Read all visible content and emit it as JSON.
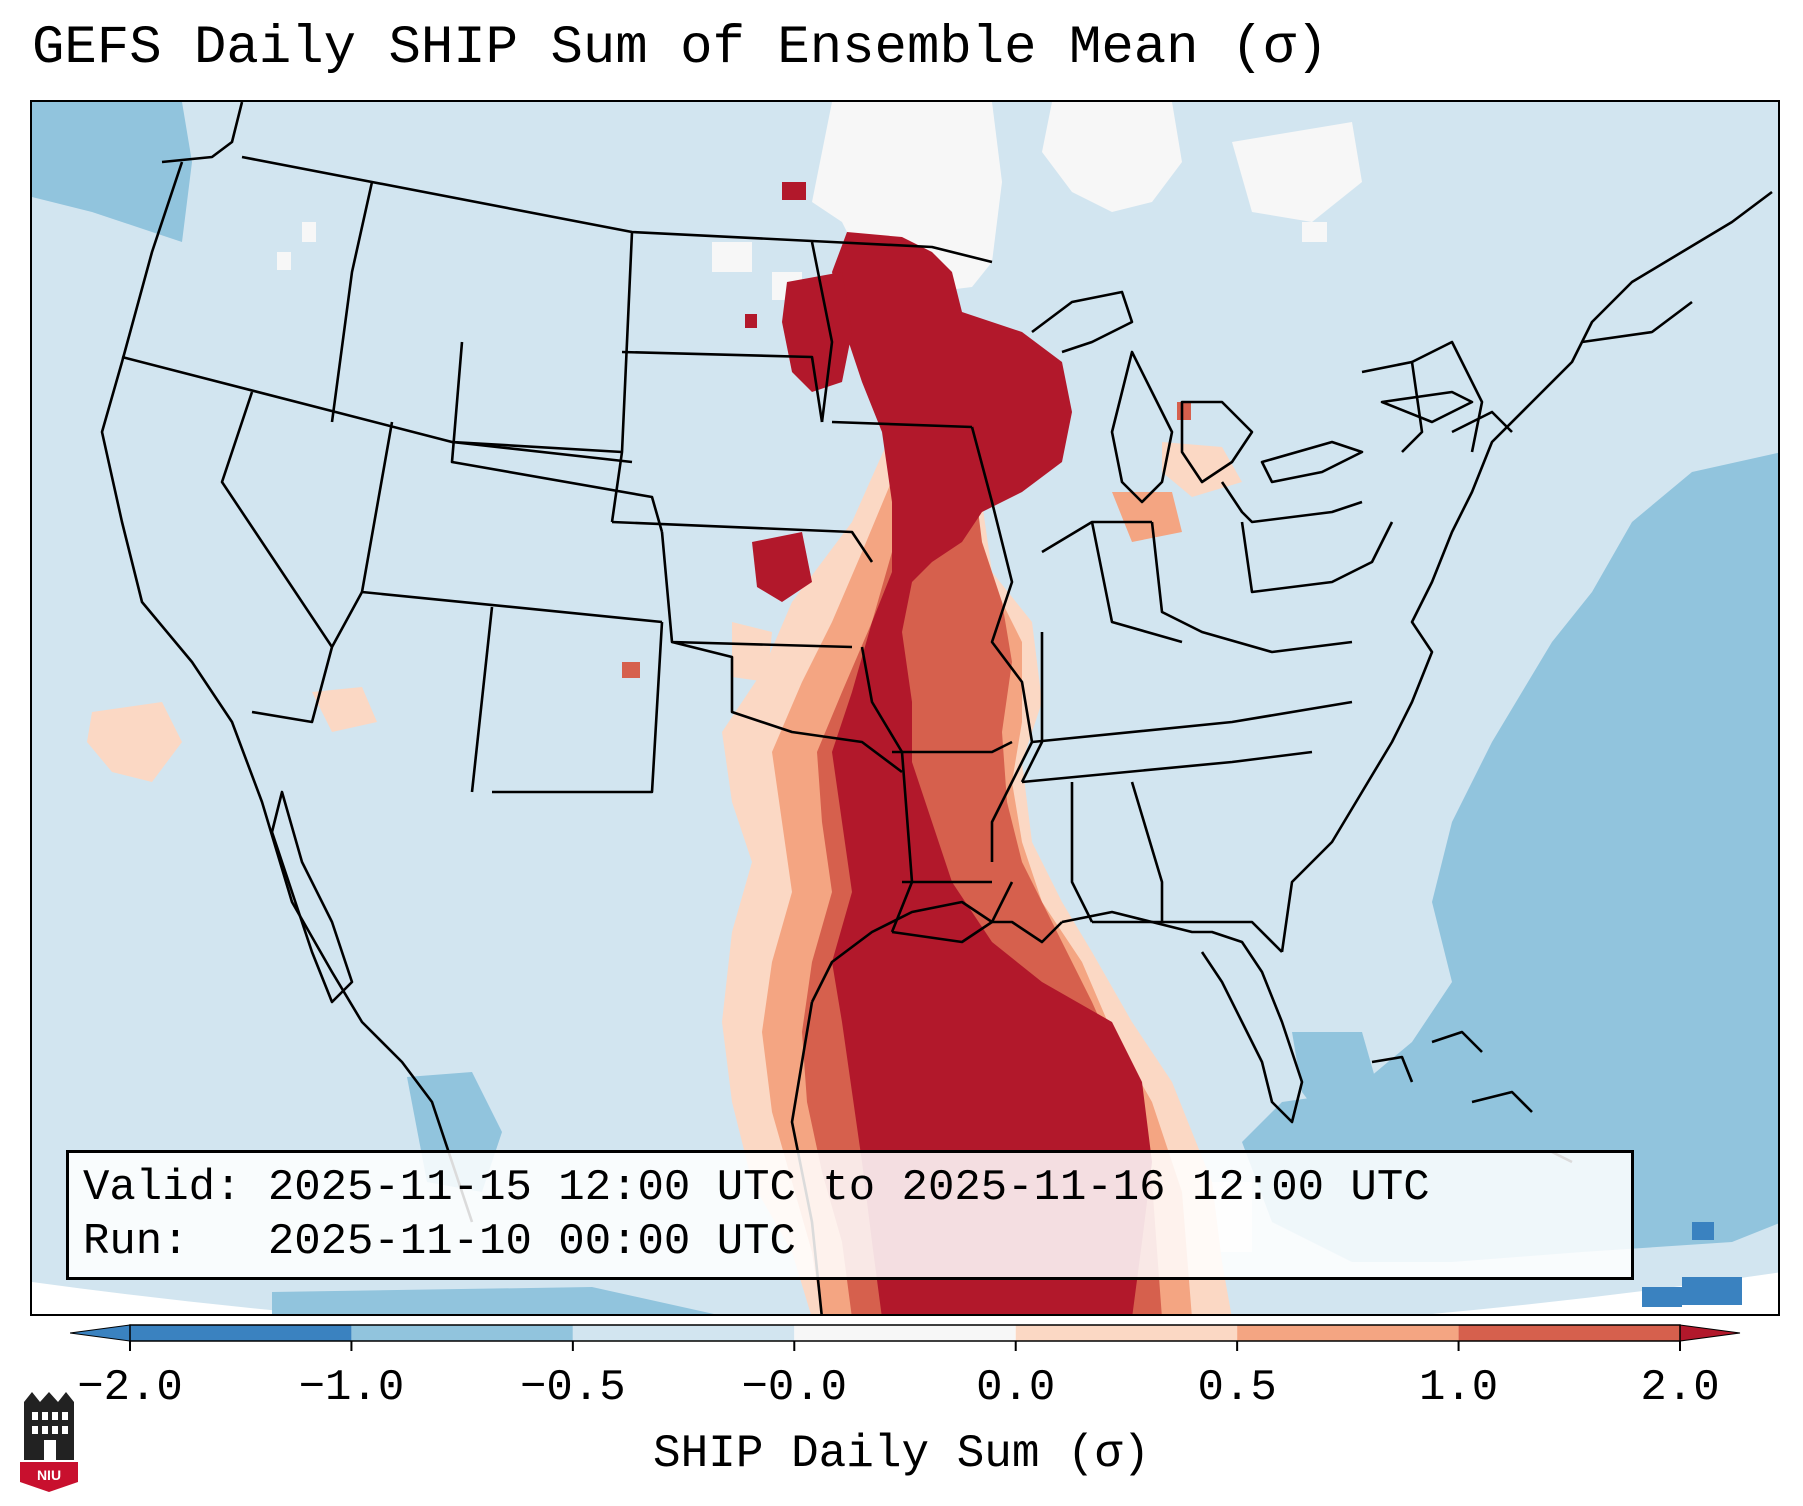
{
  "title": "GEFS Daily SHIP Sum of Ensemble Mean (σ)",
  "info": {
    "valid_label": "Valid:",
    "valid_text": "2025-11-15 12:00 UTC to 2025-11-16 12:00 UTC",
    "run_label": "Run:",
    "run_text": "2025-11-10 00:00 UTC"
  },
  "colorbar": {
    "label": "SHIP Daily Sum (σ)",
    "ticks": [
      "−2.0",
      "−1.0",
      "−0.5",
      "−0.0",
      "0.0",
      "0.5",
      "1.0",
      "2.0"
    ],
    "colors": [
      "#3a82c0",
      "#91c4dd",
      "#d2e5f0",
      "#f7f7f7",
      "#fbd8c4",
      "#f4a582",
      "#d6604d",
      "#b2182b"
    ]
  },
  "logo": {
    "text": "NIU"
  }
}
